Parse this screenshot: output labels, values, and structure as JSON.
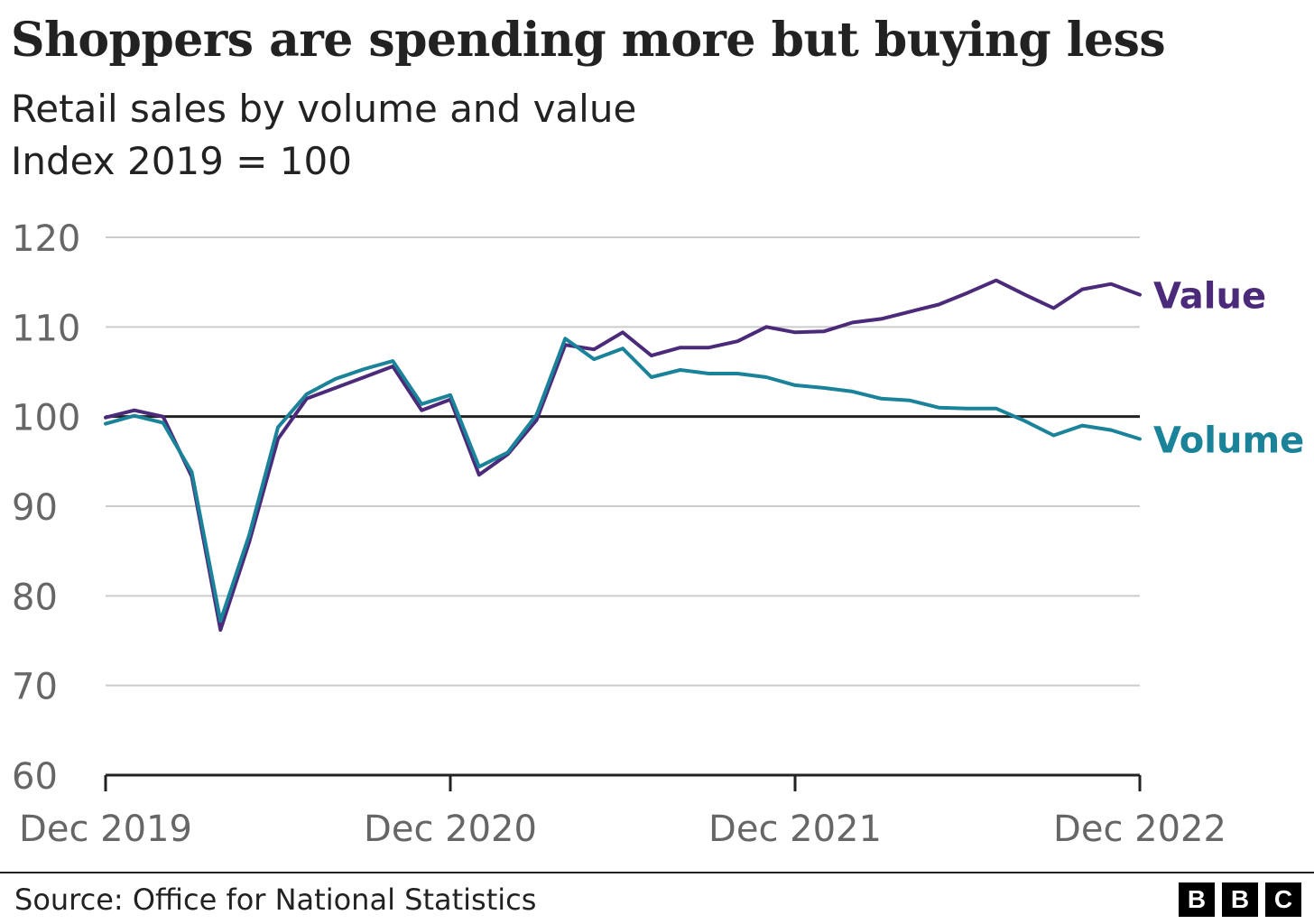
{
  "title": "Shoppers are spending more but buying less",
  "subtitle_line1": "Retail sales by volume and value",
  "subtitle_line2": "Index 2019 = 100",
  "source": "Source: Office for National Statistics",
  "logo": [
    "B",
    "B",
    "C"
  ],
  "colors": {
    "value": "#4b2a7a",
    "volume": "#1b8399",
    "baseline": "#222222",
    "grid": "#cccccc",
    "tick_text": "#666666"
  },
  "chart_data": {
    "type": "line",
    "title": "Shoppers are spending more but buying less",
    "subtitle": "Retail sales by volume and value",
    "ylabel": "Index 2019 = 100",
    "xlabel": "",
    "x_ticks": [
      "Dec 2019",
      "Dec 2020",
      "Dec 2021",
      "Dec 2022"
    ],
    "y_ticks": [
      60,
      70,
      80,
      90,
      100,
      110,
      120
    ],
    "ylim": [
      60,
      120
    ],
    "x": [
      "2019-12",
      "2020-01",
      "2020-02",
      "2020-03",
      "2020-04",
      "2020-05",
      "2020-06",
      "2020-07",
      "2020-08",
      "2020-09",
      "2020-10",
      "2020-11",
      "2020-12",
      "2021-01",
      "2021-02",
      "2021-03",
      "2021-04",
      "2021-05",
      "2021-06",
      "2021-07",
      "2021-08",
      "2021-09",
      "2021-10",
      "2021-11",
      "2021-12",
      "2022-01",
      "2022-02",
      "2022-03",
      "2022-04",
      "2022-05",
      "2022-06",
      "2022-07",
      "2022-08",
      "2022-09",
      "2022-10",
      "2022-11",
      "2022-12"
    ],
    "reference_line": 100,
    "series": [
      {
        "name": "Value",
        "values": [
          99.9,
          100.7,
          100.0,
          93.3,
          76.2,
          86.0,
          97.5,
          102.0,
          103.2,
          104.4,
          105.6,
          100.7,
          101.9,
          93.5,
          95.8,
          99.6,
          108.0,
          107.5,
          109.4,
          106.8,
          107.7,
          107.7,
          108.4,
          110.0,
          109.4,
          109.5,
          110.5,
          110.9,
          111.7,
          112.5,
          113.8,
          115.2,
          113.6,
          112.1,
          114.2,
          114.8,
          113.6
        ]
      },
      {
        "name": "Volume",
        "values": [
          99.2,
          100.1,
          99.3,
          93.8,
          77.2,
          86.8,
          98.8,
          102.5,
          104.2,
          105.3,
          106.2,
          101.4,
          102.4,
          94.4,
          96.0,
          100.2,
          108.7,
          106.4,
          107.6,
          104.4,
          105.2,
          104.8,
          104.8,
          104.4,
          103.5,
          103.2,
          102.8,
          102.0,
          101.8,
          101.0,
          100.9,
          100.9,
          99.5,
          97.9,
          99.0,
          98.5,
          97.5
        ]
      }
    ],
    "grid": true,
    "legend": "direct labels at line ends"
  }
}
